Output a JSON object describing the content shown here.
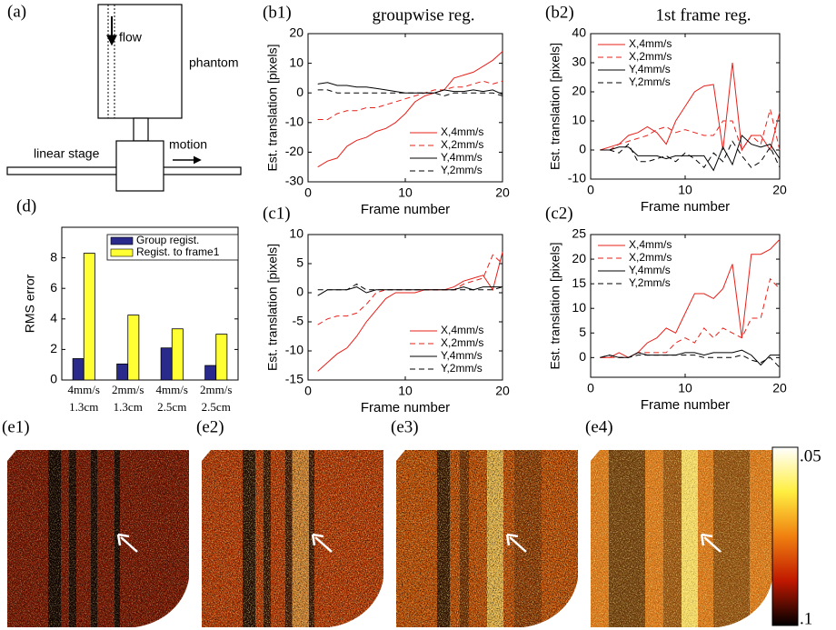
{
  "diagram": {
    "label": "(a)",
    "flow": "flow",
    "phantom": "phantom",
    "stage": "linear stage",
    "motion": "motion"
  },
  "chart_data": [
    {
      "type": "line",
      "panel_label": "(b1)",
      "title": "groupwise reg.",
      "xlabel": "Frame number",
      "ylabel": "Est. translation [pixels]",
      "x": [
        1,
        2,
        3,
        4,
        5,
        6,
        7,
        8,
        9,
        10,
        11,
        12,
        13,
        14,
        15,
        16,
        17,
        18,
        19,
        20
      ],
      "xlim": [
        0,
        20
      ],
      "xticks": [
        0,
        10,
        20
      ],
      "ylim": [
        -30,
        20
      ],
      "yticks": [
        -30,
        -20,
        -10,
        0,
        10,
        20
      ],
      "legend": "lower right",
      "series": [
        {
          "name": "X,4mm/s",
          "color": "#e8201a",
          "dash": false,
          "values": [
            -25,
            -23,
            -22,
            -18,
            -16,
            -15,
            -13,
            -12,
            -10,
            -7,
            -3,
            -1,
            0,
            1,
            5,
            6,
            7,
            9,
            11,
            14
          ]
        },
        {
          "name": "X,2mm/s",
          "color": "#e8201a",
          "dash": true,
          "values": [
            -9,
            -9,
            -7,
            -6,
            -6,
            -5,
            -5,
            -4,
            -3,
            -2,
            -1,
            0,
            1,
            1,
            2,
            2,
            3,
            4,
            3,
            4
          ]
        },
        {
          "name": "Y,4mm/s",
          "color": "#000000",
          "dash": false,
          "values": [
            3,
            3.5,
            2.5,
            2.5,
            2,
            2,
            1.5,
            1,
            0.5,
            0,
            0,
            0,
            0,
            1,
            0.5,
            0.5,
            1,
            0.5,
            1,
            -0.5
          ]
        },
        {
          "name": "Y,2mm/s",
          "color": "#000000",
          "dash": true,
          "values": [
            1,
            1,
            0,
            0,
            0,
            0,
            0,
            0,
            0,
            0,
            0,
            0,
            0,
            -1,
            0,
            0,
            0,
            0,
            0,
            -1
          ]
        }
      ]
    },
    {
      "type": "line",
      "panel_label": "(b2)",
      "title": "1st frame reg.",
      "xlabel": "Frame number",
      "ylabel": "Est. translation [pixels]",
      "x": [
        1,
        2,
        3,
        4,
        5,
        6,
        7,
        8,
        9,
        10,
        11,
        12,
        13,
        14,
        15,
        16,
        17,
        18,
        19,
        20
      ],
      "xlim": [
        0,
        20
      ],
      "xticks": [
        0,
        10,
        20
      ],
      "ylim": [
        -10,
        40
      ],
      "yticks": [
        -10,
        0,
        10,
        20,
        30,
        40
      ],
      "legend": "upper left",
      "series": [
        {
          "name": "X,4mm/s",
          "color": "#e8201a",
          "dash": false,
          "values": [
            0,
            1,
            2,
            5,
            6,
            8,
            6,
            2,
            10,
            15,
            20,
            22,
            22.5,
            0,
            30,
            0,
            5,
            5,
            0,
            13
          ]
        },
        {
          "name": "X,2mm/s",
          "color": "#e8201a",
          "dash": true,
          "values": [
            0,
            0,
            2,
            3,
            4,
            5,
            7,
            8,
            6,
            7,
            6,
            5,
            5,
            10,
            10,
            0,
            5,
            2,
            14,
            0
          ]
        },
        {
          "name": "Y,4mm/s",
          "color": "#000000",
          "dash": false,
          "values": [
            0,
            0,
            1,
            1,
            -2,
            -2,
            -2,
            -3,
            -2,
            -2,
            -2,
            -2,
            -7,
            1,
            -5,
            5,
            2,
            1,
            2,
            -3
          ]
        },
        {
          "name": "Y,2mm/s",
          "color": "#000000",
          "dash": true,
          "values": [
            0,
            0,
            -1,
            2,
            -4,
            -4,
            -3,
            -2,
            -4,
            -1,
            -3,
            -6,
            -1,
            -4,
            3,
            -2,
            -6,
            -4,
            1,
            -6
          ]
        }
      ]
    },
    {
      "type": "line",
      "panel_label": "(c1)",
      "xlabel": "Frame number",
      "ylabel": "Est. translation [pixels]",
      "x": [
        1,
        2,
        3,
        4,
        5,
        6,
        7,
        8,
        9,
        10,
        11,
        12,
        13,
        14,
        15,
        16,
        17,
        18,
        19,
        20
      ],
      "xlim": [
        0,
        20
      ],
      "xticks": [
        0,
        10,
        20
      ],
      "ylim": [
        -15,
        10
      ],
      "yticks": [
        -15,
        -10,
        -5,
        0,
        5,
        10
      ],
      "legend": "lower right",
      "series": [
        {
          "name": "X,4mm/s",
          "color": "#e8201a",
          "dash": false,
          "values": [
            -13.5,
            -12,
            -10.5,
            -9.5,
            -7.5,
            -5,
            -3,
            -1,
            0,
            0,
            0,
            0.5,
            0.5,
            0.5,
            1,
            2,
            2.5,
            3,
            0.5,
            7
          ]
        },
        {
          "name": "X,2mm/s",
          "color": "#e8201a",
          "dash": true,
          "values": [
            -5.5,
            -4.5,
            -4,
            -4,
            -3.5,
            -2,
            0,
            0.5,
            0.5,
            0.5,
            0.5,
            0.5,
            0.5,
            0.5,
            0.5,
            1.5,
            2,
            2.5,
            6.5,
            5
          ]
        },
        {
          "name": "Y,4mm/s",
          "color": "#000000",
          "dash": false,
          "values": [
            -0.5,
            0.5,
            0.5,
            0.5,
            1,
            0,
            0.5,
            0.5,
            0.5,
            0.5,
            0.5,
            0.5,
            0.5,
            0.5,
            0.5,
            1,
            0.5,
            1,
            1,
            1
          ]
        },
        {
          "name": "Y,2mm/s",
          "color": "#000000",
          "dash": true,
          "values": [
            0.5,
            0.5,
            0.5,
            0.5,
            1.5,
            0.5,
            0.5,
            0.5,
            0.5,
            0.5,
            0.5,
            0.5,
            0.5,
            0.5,
            0.5,
            0.5,
            0.5,
            0.5,
            0.5,
            1
          ]
        }
      ]
    },
    {
      "type": "line",
      "panel_label": "(c2)",
      "xlabel": "Frame number",
      "ylabel": "Est. translation [pixels]",
      "x": [
        1,
        2,
        3,
        4,
        5,
        6,
        7,
        8,
        9,
        10,
        11,
        12,
        13,
        14,
        15,
        16,
        17,
        18,
        19,
        20
      ],
      "xlim": [
        0,
        20
      ],
      "xticks": [
        0,
        10,
        20
      ],
      "ylim": [
        -4,
        25
      ],
      "yticks": [
        0,
        5,
        10,
        15,
        20,
        25
      ],
      "legend": "upper left",
      "series": [
        {
          "name": "X,4mm/s",
          "color": "#e8201a",
          "dash": false,
          "values": [
            0,
            0,
            1,
            0,
            1,
            3,
            4,
            6,
            5,
            9,
            13,
            13,
            12,
            14,
            19,
            4,
            21,
            21,
            22,
            24
          ]
        },
        {
          "name": "X,2mm/s",
          "color": "#e8201a",
          "dash": true,
          "values": [
            0,
            0,
            0,
            0,
            1,
            1,
            1,
            1,
            3,
            4,
            3,
            6,
            4,
            6,
            5,
            4,
            8,
            8,
            16,
            14
          ]
        },
        {
          "name": "Y,4mm/s",
          "color": "#000000",
          "dash": false,
          "values": [
            0,
            0.5,
            0,
            0,
            1,
            0.5,
            0.5,
            0.5,
            0.5,
            1,
            1,
            0.5,
            1,
            1,
            1,
            1.5,
            0.5,
            -1.5,
            0.5,
            0.5
          ]
        },
        {
          "name": "Y,2mm/s",
          "color": "#000000",
          "dash": true,
          "values": [
            0,
            0.5,
            0,
            0,
            0.5,
            0.5,
            0.5,
            0.5,
            0.5,
            0.5,
            0.5,
            0,
            0,
            0,
            0,
            0.5,
            -0.5,
            -1,
            0,
            -2
          ]
        }
      ]
    },
    {
      "type": "bar",
      "panel_label": "(d)",
      "ylabel": "RMS error",
      "categories": [
        "4mm/s",
        "2mm/s",
        "4mm/s",
        "2mm/s"
      ],
      "category_sublabels": [
        "1.3cm",
        "1.3cm",
        "2.5cm",
        "2.5cm"
      ],
      "ylim": [
        0,
        10
      ],
      "yticks": [
        0,
        2,
        4,
        6,
        8
      ],
      "legend": "upper right",
      "series": [
        {
          "name": "Group regist.",
          "color": "#2a2a8c",
          "values": [
            1.4,
            1.05,
            2.1,
            0.95
          ]
        },
        {
          "name": "Regist. to frame1",
          "color": "#ffff33",
          "values": [
            8.3,
            4.25,
            3.35,
            3.0
          ]
        }
      ]
    }
  ],
  "images": {
    "labels": [
      "(e1)",
      "(e2)",
      "(e3)",
      "(e4)"
    ],
    "colorbar_labels": [
      ".05",
      ".1"
    ]
  }
}
